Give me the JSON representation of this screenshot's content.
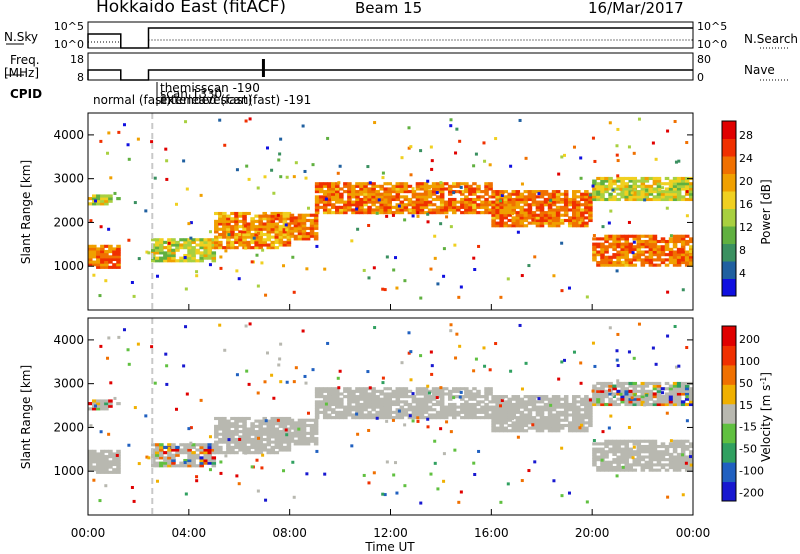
{
  "header": {
    "station": "Hokkaido East (fitACF)",
    "beam": "Beam 15",
    "date": "16/Mar/2017"
  },
  "left_labels": {
    "nsky": "N.Sky",
    "freq": "Freq.",
    "freq_unit": "[MHz]",
    "cpid": "CPID"
  },
  "right_labels": {
    "nsearch": "N.Search",
    "nave": "Nave"
  },
  "noise_panel": {
    "left_ticks": [
      "10^5",
      "10^0"
    ],
    "right_ticks": [
      "10^5",
      "10^0"
    ]
  },
  "freq_panel": {
    "left_ticks": [
      "18",
      "8"
    ],
    "right_ticks": [
      "80",
      "0"
    ]
  },
  "cpid_labels": [
    "normal (fast)",
    "extended (fast)",
    "themisscan -190",
    "interleavescan(fast) -191",
    "scan 1330"
  ],
  "colors": {
    "power_scale": [
      "#1010e0",
      "#2060a0",
      "#3a9060",
      "#60b040",
      "#a8d040",
      "#f0d020",
      "#f0a000",
      "#f07000",
      "#f03000",
      "#e00000"
    ],
    "velocity_scale": [
      "#1818d0",
      "#2060c0",
      "#30a060",
      "#60c040",
      "#b8b8b0",
      "#f0b000",
      "#f07000",
      "#f03000",
      "#e00000"
    ],
    "ground_scatter": "#b8b8b0"
  },
  "chart_data": [
    {
      "type": "heatmap",
      "title": "Power",
      "ylabel": "Slant Range [km]",
      "xlabel": "",
      "x_range_hours": [
        0,
        24
      ],
      "ylim": [
        0,
        4500
      ],
      "y_ticks": [
        1000,
        2000,
        3000,
        4000
      ],
      "colorbar": {
        "label": "Power [dB]",
        "ticks": [
          4,
          8,
          12,
          16,
          20,
          24,
          28
        ]
      },
      "features": [
        {
          "x": [
            0,
            1.2
          ],
          "y": [
            950,
            1450
          ],
          "level": 28
        },
        {
          "x": [
            0,
            1.2
          ],
          "y": [
            2400,
            2600
          ],
          "level": 20
        },
        {
          "x": [
            2.5,
            5
          ],
          "y": [
            1100,
            1600
          ],
          "level": 20
        },
        {
          "x": [
            5,
            8
          ],
          "y": [
            1400,
            2200
          ],
          "level": 26
        },
        {
          "x": [
            8,
            9
          ],
          "y": [
            1600,
            2200
          ],
          "level": 28
        },
        {
          "x": [
            9,
            16
          ],
          "y": [
            2200,
            2900
          ],
          "level": 28
        },
        {
          "x": [
            16,
            20
          ],
          "y": [
            1900,
            2700
          ],
          "level": 28
        },
        {
          "x": [
            20,
            24
          ],
          "y": [
            1000,
            1700
          ],
          "level": 28
        },
        {
          "x": [
            20,
            24
          ],
          "y": [
            2500,
            3000
          ],
          "level": 20
        }
      ]
    },
    {
      "type": "heatmap",
      "title": "Velocity",
      "ylabel": "Slant Range [km]",
      "xlabel": "Time UT",
      "x_ticks": [
        "00:00",
        "04:00",
        "08:00",
        "12:00",
        "16:00",
        "20:00",
        "00:00"
      ],
      "ylim": [
        0,
        4500
      ],
      "y_ticks": [
        1000,
        2000,
        3000,
        4000
      ],
      "colorbar": {
        "label": "Velocity [m s-1]",
        "unit_prefix": "Velocity [m s",
        "unit_sup": "-1",
        "unit_suffix": "]",
        "ticks": [
          200,
          100,
          50,
          15,
          -15,
          -50,
          -100,
          -200
        ]
      }
    }
  ]
}
